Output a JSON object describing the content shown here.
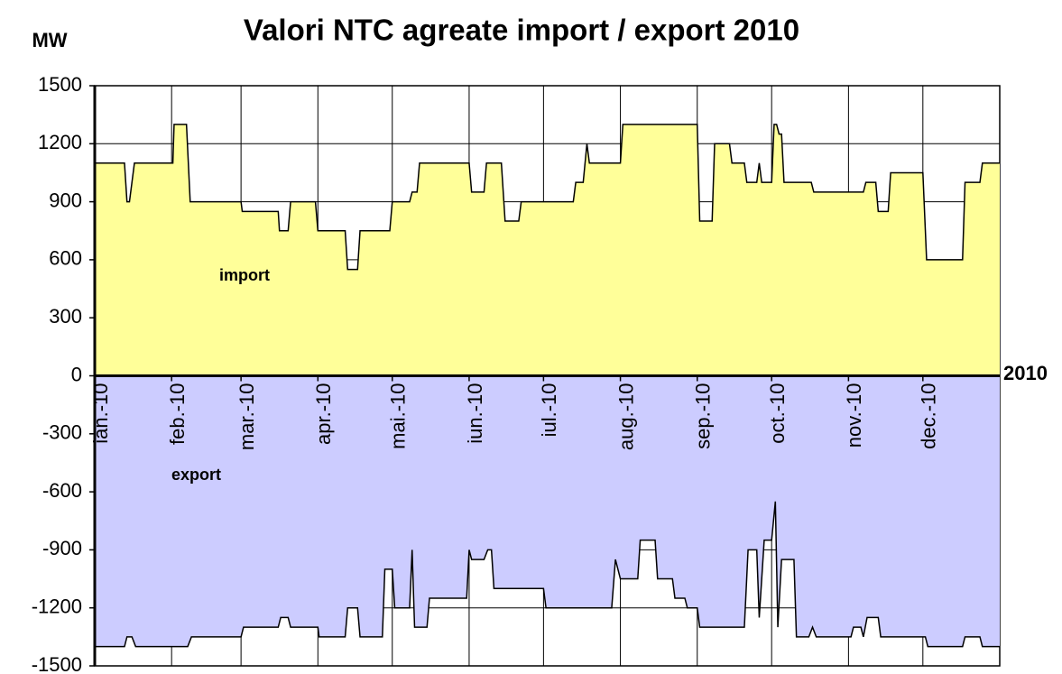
{
  "chart_data": {
    "type": "area",
    "title": "Valori NTC agreate import / export 2010",
    "y_label": "MW",
    "x_label": "2010",
    "xlim": [
      0,
      365
    ],
    "xticks": [
      {
        "value": 0,
        "label": "ian.-10"
      },
      {
        "value": 31,
        "label": "feb.-10"
      },
      {
        "value": 59,
        "label": "mar.-10"
      },
      {
        "value": 90,
        "label": "apr.-10"
      },
      {
        "value": 120,
        "label": "mai.-10"
      },
      {
        "value": 151,
        "label": "iun.-10"
      },
      {
        "value": 181,
        "label": "iul.-10"
      },
      {
        "value": 212,
        "label": "aug.-10"
      },
      {
        "value": 243,
        "label": "sep.-10"
      },
      {
        "value": 273,
        "label": "oct.-10"
      },
      {
        "value": 304,
        "label": "nov.-10"
      },
      {
        "value": 334,
        "label": "dec.-10"
      }
    ],
    "ylim": [
      -1500,
      1500
    ],
    "yticks": [
      -1500,
      -1200,
      -900,
      -600,
      -300,
      0,
      300,
      600,
      900,
      1200,
      1500
    ],
    "grid": true,
    "series": [
      {
        "name": "import",
        "color": "#ffff99",
        "x": [
          0,
          12,
          13,
          14,
          16,
          31.5,
          32,
          37,
          38.5,
          59,
          59.5,
          74,
          74.5,
          78,
          79,
          89,
          90,
          101,
          102,
          106,
          107,
          119,
          120,
          127,
          128,
          130,
          131,
          151,
          152,
          157,
          158,
          164,
          165.5,
          171,
          172,
          193,
          194,
          197,
          198.5,
          199.5,
          212,
          213,
          243,
          244,
          249,
          250,
          256,
          257,
          262,
          263,
          267,
          268,
          269,
          273,
          274,
          275,
          276,
          277,
          278,
          289,
          290,
          310,
          311,
          315,
          316,
          320,
          321,
          334,
          335.5,
          350,
          351,
          357,
          358,
          365
        ],
        "values": [
          1100,
          1100,
          900,
          900,
          1100,
          1100,
          1300,
          1300,
          900,
          900,
          850,
          850,
          750,
          750,
          900,
          900,
          750,
          750,
          550,
          550,
          750,
          750,
          900,
          900,
          950,
          950,
          1100,
          1100,
          950,
          950,
          1100,
          1100,
          800,
          800,
          900,
          900,
          1000,
          1000,
          1200,
          1100,
          1100,
          1300,
          1300,
          800,
          800,
          1200,
          1200,
          1100,
          1100,
          1000,
          1000,
          1100,
          1000,
          1000,
          1300,
          1300,
          1250,
          1250,
          1000,
          1000,
          950,
          950,
          1000,
          1000,
          850,
          850,
          1050,
          1050,
          600,
          600,
          1000,
          1000,
          1100,
          1100
        ]
      },
      {
        "name": "export",
        "color": "#ccccff",
        "x": [
          0,
          12,
          13,
          15,
          16.5,
          37.5,
          39,
          59,
          60,
          74,
          75,
          78,
          79,
          90,
          90.5,
          101,
          102,
          106,
          107,
          116,
          117,
          120,
          121,
          127,
          128,
          129,
          134,
          135,
          150,
          151,
          152,
          157,
          158.5,
          160,
          161,
          181,
          182,
          208.5,
          210,
          212,
          219,
          220,
          226,
          227,
          233,
          234,
          238,
          239,
          243,
          244,
          262,
          263.5,
          267,
          268,
          270,
          273,
          274.5,
          275.5,
          277,
          282,
          283,
          288,
          289.5,
          291,
          305,
          306,
          309,
          310,
          311.5,
          316,
          317,
          335,
          336,
          350,
          351,
          357,
          358,
          365
        ],
        "values": [
          -1400,
          -1400,
          -1350,
          -1350,
          -1400,
          -1400,
          -1350,
          -1350,
          -1300,
          -1300,
          -1250,
          -1250,
          -1300,
          -1300,
          -1350,
          -1350,
          -1200,
          -1200,
          -1350,
          -1350,
          -1000,
          -1000,
          -1200,
          -1200,
          -900,
          -1300,
          -1300,
          -1150,
          -1150,
          -900,
          -950,
          -950,
          -900,
          -900,
          -1100,
          -1100,
          -1200,
          -1200,
          -950,
          -1050,
          -1050,
          -850,
          -850,
          -1050,
          -1050,
          -1150,
          -1150,
          -1200,
          -1200,
          -1300,
          -1300,
          -900,
          -900,
          -1250,
          -850,
          -850,
          -650,
          -1300,
          -950,
          -950,
          -1350,
          -1350,
          -1300,
          -1350,
          -1350,
          -1300,
          -1300,
          -1350,
          -1250,
          -1250,
          -1350,
          -1350,
          -1400,
          -1400,
          -1350,
          -1350,
          -1400,
          -1400
        ]
      }
    ]
  }
}
